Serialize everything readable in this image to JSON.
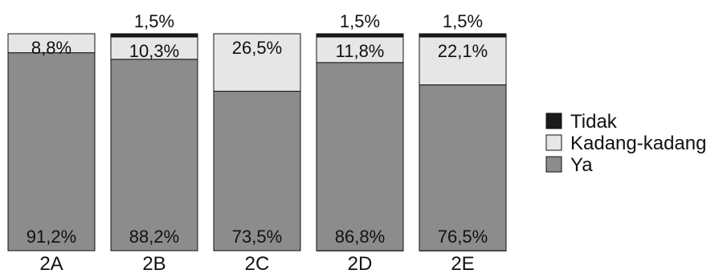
{
  "chart_data": {
    "type": "bar",
    "stacked": true,
    "normalized": true,
    "categories": [
      "2A",
      "2B",
      "2C",
      "2D",
      "2E"
    ],
    "series": [
      {
        "name": "Tidak",
        "color": "#1a1a1a",
        "values": [
          0,
          1.5,
          0,
          1.5,
          1.5
        ],
        "labels": [
          "",
          "1,5%",
          "",
          "1,5%",
          "1,5%"
        ]
      },
      {
        "name": "Kadang-kadang",
        "color": "#e6e6e6",
        "values": [
          8.8,
          10.3,
          26.5,
          11.8,
          22.1
        ],
        "labels": [
          "8,8%",
          "10,3%",
          "26,5%",
          "11,8%",
          "22,1%"
        ]
      },
      {
        "name": "Ya",
        "color": "#8c8c8e",
        "values": [
          91.2,
          88.2,
          73.5,
          86.8,
          76.5
        ],
        "labels": [
          "91,2%",
          "88,2%",
          "73,5%",
          "86,8%",
          "76,5%"
        ]
      }
    ],
    "ylim": [
      0,
      100
    ],
    "title": "",
    "xlabel": "",
    "ylabel": "",
    "grid": false,
    "legend": {
      "placement": "right",
      "entries": [
        "Tidak",
        "Kadang-kadang",
        "Ya"
      ]
    }
  }
}
